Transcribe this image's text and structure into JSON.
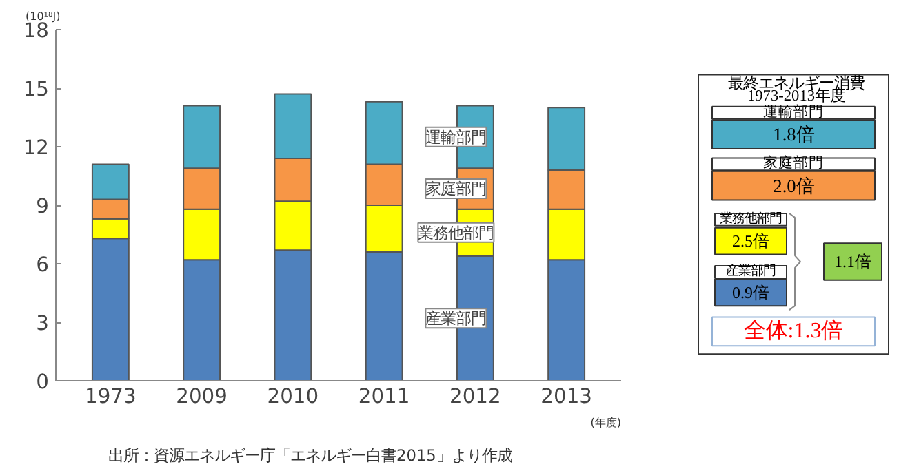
{
  "chart_data": [
    {
      "type": "bar",
      "stacked": true,
      "ylabel": "(10¹⁸J)",
      "xlabel": "(年度)",
      "categories": [
        "1973",
        "2009",
        "2010",
        "2011",
        "2012",
        "2013"
      ],
      "series": [
        {
          "name": "産業部門",
          "color": "#4f81bd",
          "values": [
            7.3,
            6.2,
            6.7,
            6.6,
            6.4,
            6.2
          ]
        },
        {
          "name": "業務他部門",
          "color": "#ffff00",
          "values": [
            1.0,
            2.6,
            2.5,
            2.4,
            2.4,
            2.6
          ]
        },
        {
          "name": "家庭部門",
          "color": "#f79646",
          "values": [
            1.0,
            2.1,
            2.2,
            2.1,
            2.1,
            2.0
          ]
        },
        {
          "name": "運輸部門",
          "color": "#4bacc6",
          "values": [
            1.8,
            3.2,
            3.3,
            3.2,
            3.2,
            3.2
          ]
        }
      ],
      "ylim": [
        0,
        18
      ],
      "yticks": [
        0,
        3,
        6,
        9,
        12,
        15,
        18
      ],
      "grid": false,
      "legend": false,
      "annotations": [
        "出所：資源エネルギー庁「エネルギー白書2015」より作成"
      ]
    },
    {
      "type": "other",
      "title": "最終エネルギー消費",
      "subtitle": "1973-2013年度",
      "categories": [
        "運輸部門",
        "家庭部門",
        "業務他部門",
        "産業部門"
      ],
      "value_labels": [
        "1.8倍",
        "2.0倍",
        "2.5倍",
        "0.9倍"
      ],
      "annotations": [
        "1.1倍",
        "全体:1.3倍"
      ]
    }
  ]
}
